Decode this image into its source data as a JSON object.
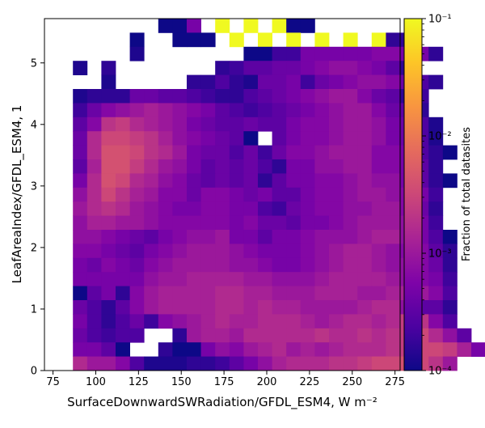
{
  "chart_data": {
    "type": "heatmap",
    "title": "",
    "xlabel": "SurfaceDownwardSWRadiation/GFDL_ESM4,  W m⁻²",
    "ylabel": "LeafAreaIndex/GFDL_ESM4,  1",
    "xlim": [
      70,
      278
    ],
    "ylim": [
      0,
      5.72
    ],
    "x_ticks": [
      "75",
      "100",
      "125",
      "150",
      "175",
      "200",
      "225",
      "250",
      "275"
    ],
    "y_ticks": [
      "0",
      "1",
      "2",
      "3",
      "4",
      "5"
    ],
    "x_bin_start": 70,
    "x_bin_width": 8.32,
    "y_bin_start": 0,
    "y_bin_width": 0.2288,
    "colorbar": {
      "label": "Fraction of total datasites",
      "scale": "log",
      "min": 0.0001,
      "max": 0.1,
      "colormap": "plasma",
      "tick_labels": [
        {
          "value": 0.1,
          "label": "10⁻¹"
        },
        {
          "value": 0.01,
          "label": "10⁻²"
        },
        {
          "value": 0.001,
          "label": "10⁻³"
        },
        {
          "value": 0.0001,
          "label": "10⁻⁴"
        }
      ]
    },
    "grid": false,
    "log10_values_top_row_first": [
      "........-4-4-3.3.3.3.3.3.3-4-4.........",
      "......-4..-4-4-4.3.3.3.3.3.3.3.3.3.3.3.3-3.8-3.8..........",
      "......-3.9.......-4-4-3.7-3.7-3.3-3.3-3.3-3.3-3.3-3.2-3.2-3.3-3.3-3.8.........",
      "..-3.9.-3.8.......-3.8-3.7-3.5-3.5-3.4-3.4-3.3-3.2-3.1-3.1-3.2-3.3-3.5-3.8.......",
      "....-3.9.....-3.8-3.8-3.6-3.8-3.9-3.4-3.4-3.3-3.7-3.4-3.3-3.2-3.1-3.1-3.2-3.4-3.6-3.8......",
      "..-3.9-3.8-3.8-3.8-3.4-3.4-3.5-3.5-3.6-3.7-3.8-3.8-3.6-3.5-3.4-3.3-3.2-3.1-3.0-3.0-3.2-3.4-3.5-3.8-3.7...",
      "..-3.7-3.4-3.2-3.1-3.0-2.9-3.0-3.1-3.2-3.3-3.5-3.6-3.7-3.6-3.5-3.4-3.3-3.2-3.1-3.0-3.0-3.2-3.4-3.5-3.8...",
      "..-3.5-3.2-2.7-2.6-2.8-2.9-3.0-3.1-3.3-3.4-3.5-3.5-3.4-3.5-3.5-3.3-3.2-3.2-3.1-3.0-3.0-3.1-3.3-3.4-3.6-3.9..",
      "..-3.4-2.8-2.5-2.5-2.6-2.7-2.9-3.1-3.2-3.3-3.4-3.5-4.0.-3.5-3.3-3.2-3.2-3.1-3.0-3.0-3.1-3.3-3.4-3.6-3.9..",
      "..-3.4-2.8-2.4-2.4-2.5-2.7-2.8-3.0-3.3-3.4-3.4-3.6-3.4-3.7-3.4-3.2-3.2-3.1-3.0-3.0-3.0-3.2-3.2-3.3-3.6-3.8-4",
      "..-3.5-2.9-2.4-2.4-2.6-2.8-3.0-3.1-3.3-3.5-3.4-3.5-3.4-3.6-3.8-3.3-3.3-3.1-3.1-3.0-3.0-3.2-3.2-3.3-3.5-3.8..",
      "..-3.3-2.8-2.4-2.5-2.8-2.9-3.1-3.2-3.4-3.5-3.4-3.5-3.4-3.8-3.5-3.3-3.3-3.2-3.2-3.1-3.0-3.1-3.1-3.3-3.5-3.8-4",
      "..-3.1-2.8-2.5-2.7-2.9-3.0-3.2-3.2-3.4-3.2-3.2-3.3-3.4-3.3-3.5-3.5-3.3-3.2-3.2-3.1-3.0-3.0-3.1-3.2-3.3-3.7.",
      "..-3.0-2.8-2.7-2.8-3.0-3.1-3.2-3.3-3.3-3.2-3.2-3.3-3.3-3.6-3.7-3.4-3.3-3.2-3.2-3.1-3.1-3.0-3.0-3.2-3.4-3.8.",
      "..-3.1-2.9-2.9-3.0-3.0-3.1-3.2-3.2-3.2-3.2-3.2-3.3-3.2-3.4-3.4-3.5-3.3-3.3-3.2-3.1-3.0-3.0-3.0-3.1-3.3-3.7.",
      "..-3.1-3.1-3.2-3.3-3.4-3.5-3.3-3.2-3.1-3.1-3.0-3.3-3.3-3.5-3.3-3.3-3.2-3.1-3.1-3.1-3.0-2.9-2.9-3.1-3.3-3.6-4",
      "..-3.2-3.2-3.3-3.4-3.5-3.3-3.2-3.1-3.0-3.0-3.0-3.1-3.2-3.3-3.3-3.3-3.2-3.1-3.0-2.9-2.9-3.0-3.1-3.2-3.2-3.5-3.8",
      "..-3.3-3.4-3.2-3.3-3.4-3.2-3.1-3.0-3.0-3.0-3.0-3.1-3.1-3.2-3.3-3.3-3.2-3.1-3.0-2.9-2.9-3.0-3.1-3.1-3.2-3.4-3.8",
      "..-3.3-3.3-3.3-3.3-3.3-3.1-3.0-3.0-2.9-2.9-2.9-2.9-3.0-3.0-3.1-3.1-3.1-3.0-2.9-2.9-2.9-2.9-3.0-3.1-3.2-3.3-3.7",
      "..-4.0-3.5-3.3-3.8-3.2-3.0-2.9-2.9-2.9-2.9-2.8-2.8-2.9-2.9-3.0-3.0-3.0-2.9-2.9-2.9-3.0-3.0-2.9-2.9-3.0-3.2-3.6",
      "..-3.4-3.6-3.8-3.5-3.2-3.0-2.9-2.9-2.9-2.9-2.8-2.8-2.9-2.8-2.9-2.9-3.0-3.0-3.0-3.0-2.9-2.8-2.8-3.1-3.5-3.5-3.8",
      "..-3.3-3.6-3.8-3.6-3.4-3.7-3.2-3.1-3.0-2.9-2.8-2.9-2.9-2.8-2.8-2.8-2.9-3.0-2.9-2.8-2.8-2.9-2.8-2.6-2.7-3.2-3.6",
      "..-3.4-3.6-3.7-3.6-3.6..-3.8-3.0-2.9-2.9-3.0-2.8-2.8-2.8-2.8-2.8-2.7-2.8-2.8-2.7-2.8-2.7-2.6-2.5-2.8-3.1-3.5",
      "..-3.3-3.3-3.5-4..-3.8-4-4-3.3-3.1-3.2-3.0-2.9-2.8-3.0-2.9-3.0-2.9-2.8-2.8-2.8-2.7-2.6-2.5-2.5-2.6-2.9-3.3",
      "..-2.8-3.0-3.0-3.2-3.6-3.9-3.9-3.9-3.8-3.8-3.7-3.5-3.3-3.1-2.9-2.8-2.8-2.8-2.7-2.7-2.6-2.5-2.5-2.4-2.5-2.7-3.0"
    ]
  }
}
